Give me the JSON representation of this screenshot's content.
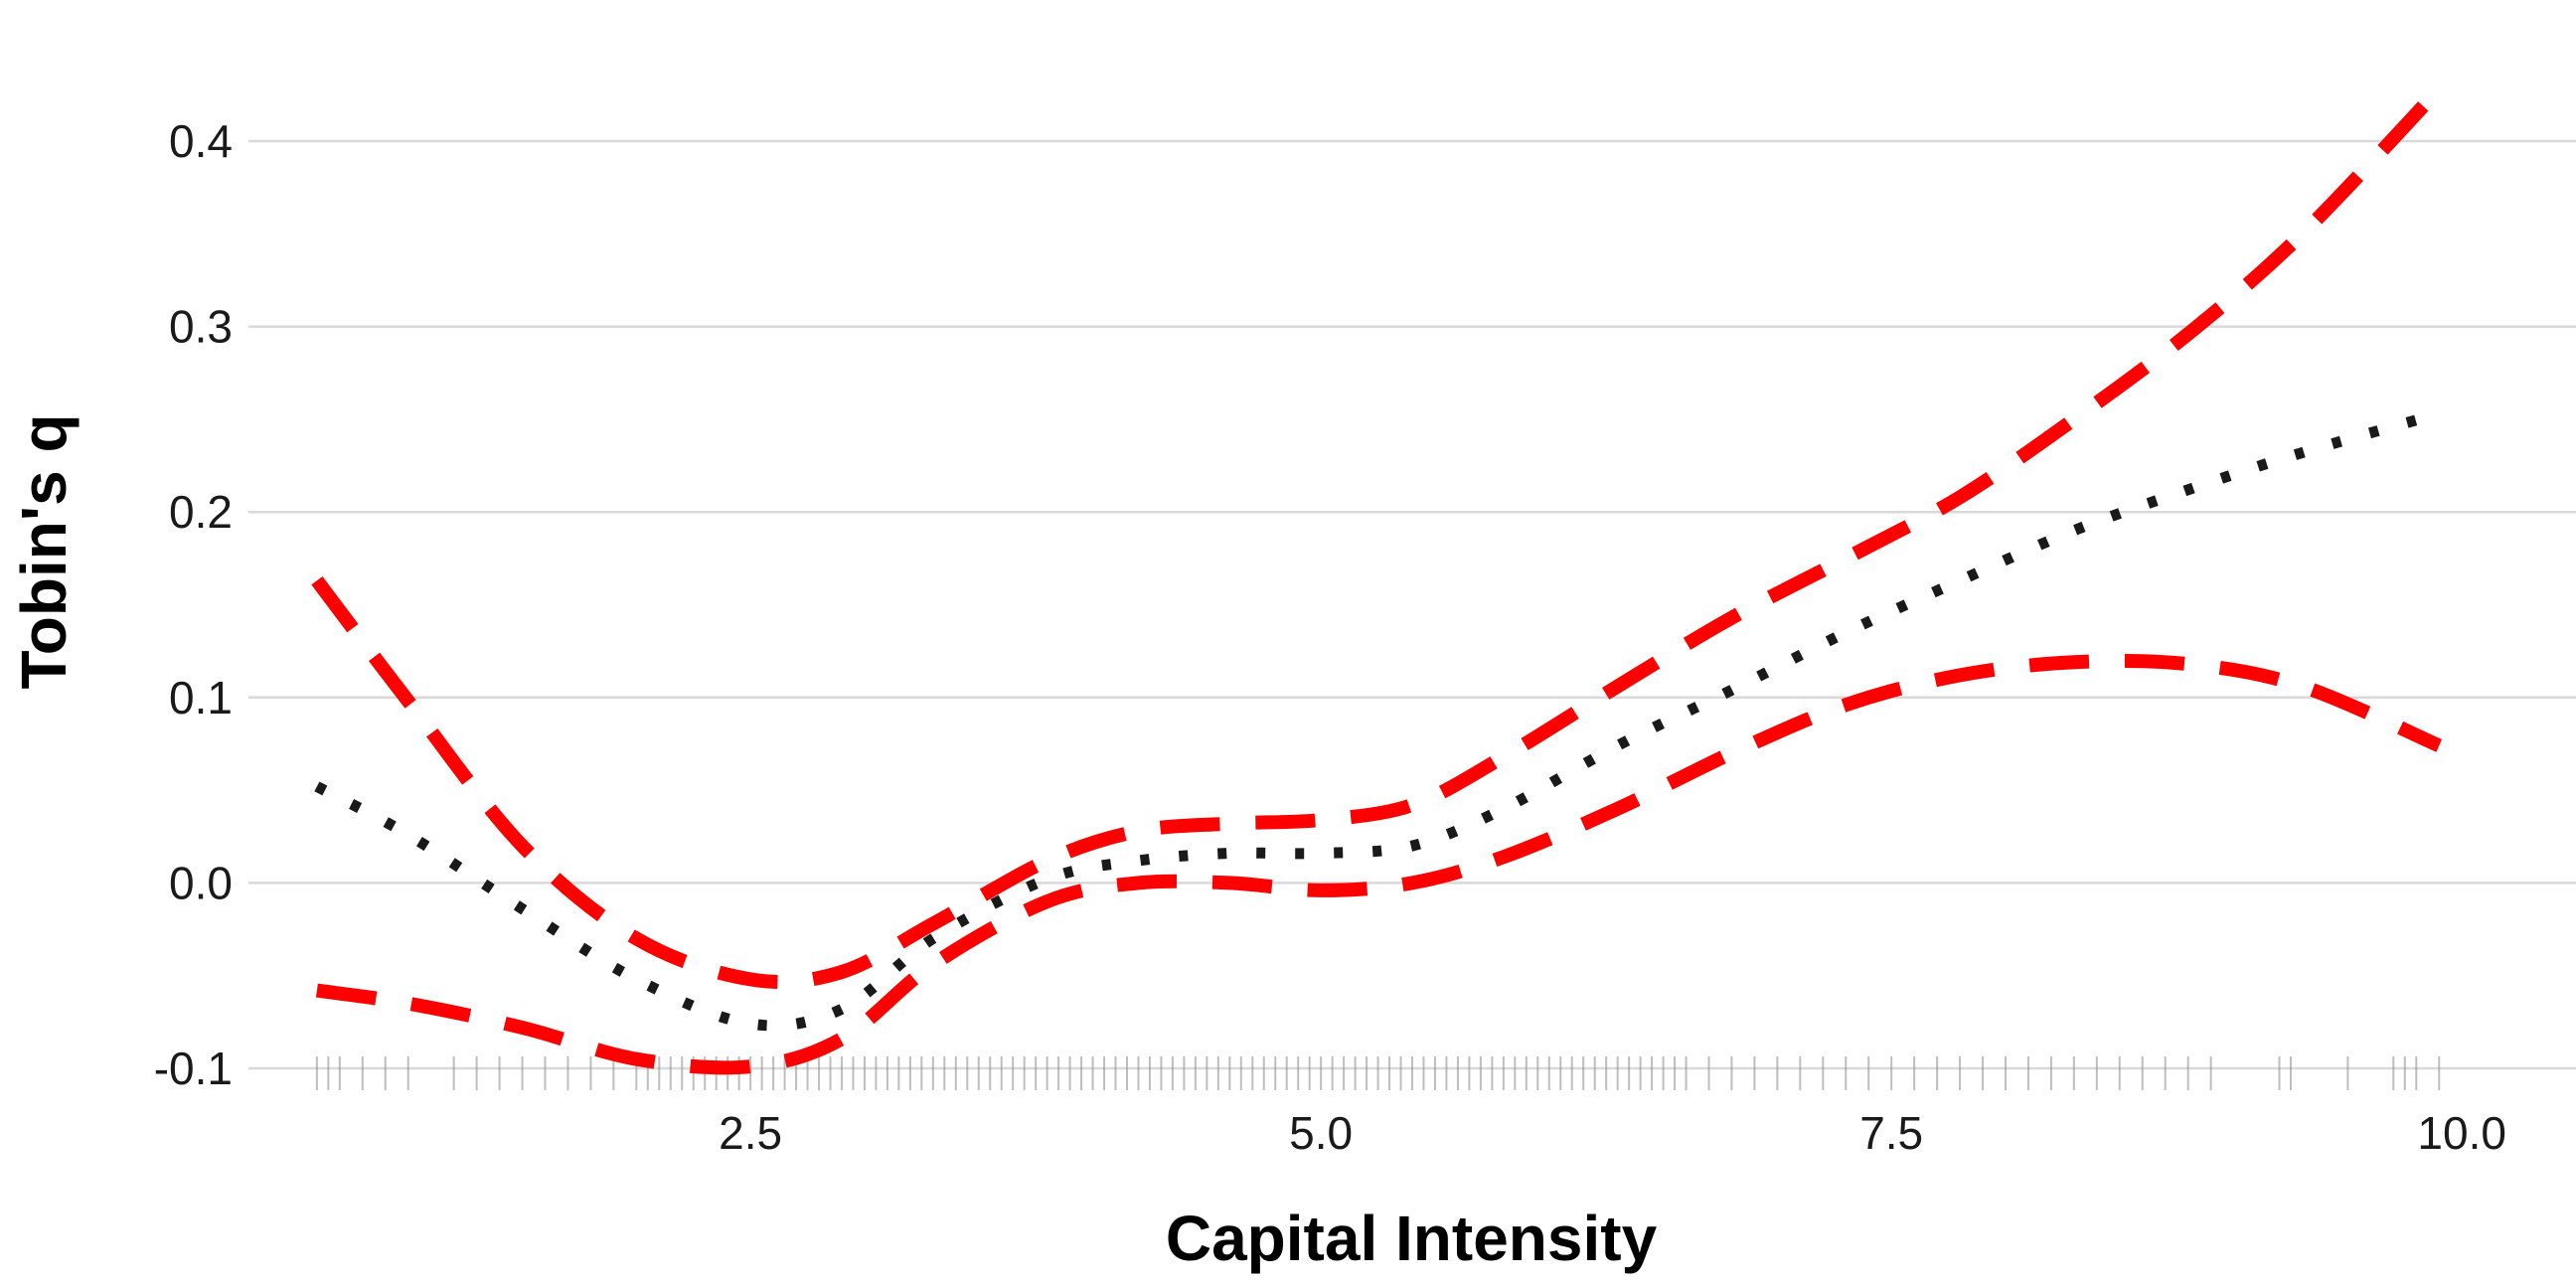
{
  "chart_data": {
    "type": "line",
    "title": "",
    "xlabel": "Capital Intensity",
    "ylabel": "Tobin's q",
    "xlim": [
      0.3,
      10.5
    ],
    "ylim": [
      -0.115,
      0.445
    ],
    "x_ticks": [
      2.5,
      5.0,
      7.5,
      10.0
    ],
    "x_tick_labels": [
      "2.5",
      "5.0",
      "7.5",
      "10.0"
    ],
    "y_ticks": [
      -0.1,
      0.0,
      0.1,
      0.2,
      0.3,
      0.4
    ],
    "y_tick_labels": [
      "-0.1",
      "0.0",
      "0.1",
      "0.2",
      "0.3",
      "0.4"
    ],
    "grid": "horizontal",
    "legend": "none",
    "colors": {
      "estimate": "#1a1a1a",
      "bands": "#ff0000",
      "rug": "#888888",
      "grid": "#d9d9d9"
    },
    "series": [
      {
        "style": "dotted",
        "x": [
          0.6,
          1.0,
          1.5,
          2.0,
          2.5,
          2.9,
          3.3,
          3.8,
          4.2,
          4.6,
          5.0,
          5.4,
          5.8,
          6.3,
          6.8,
          7.3,
          7.8,
          8.3,
          8.8,
          9.3,
          9.9
        ],
        "y": [
          0.052,
          0.026,
          -0.014,
          -0.052,
          -0.076,
          -0.068,
          -0.03,
          0.002,
          0.012,
          0.016,
          0.016,
          0.02,
          0.04,
          0.074,
          0.104,
          0.135,
          0.163,
          0.19,
          0.212,
          0.232,
          0.253
        ]
      },
      {
        "style": "dashed",
        "x": [
          0.6,
          1.0,
          1.5,
          2.0,
          2.5,
          2.9,
          3.3,
          3.8,
          4.2,
          4.6,
          5.0,
          5.4,
          5.8,
          6.3,
          6.8,
          7.3,
          7.8,
          8.3,
          8.8,
          9.3,
          9.9
        ],
        "y": [
          0.163,
          0.098,
          0.02,
          -0.03,
          -0.052,
          -0.048,
          -0.022,
          0.012,
          0.028,
          0.032,
          0.034,
          0.042,
          0.068,
          0.106,
          0.143,
          0.175,
          0.208,
          0.25,
          0.296,
          0.35,
          0.428
        ]
      },
      {
        "style": "dashed",
        "x": [
          0.6,
          1.0,
          1.5,
          2.0,
          2.5,
          2.9,
          3.3,
          3.8,
          4.2,
          4.6,
          5.0,
          5.4,
          5.8,
          6.3,
          6.8,
          7.3,
          7.8,
          8.3,
          8.8,
          9.3,
          9.9
        ],
        "y": [
          -0.058,
          -0.065,
          -0.078,
          -0.095,
          -0.099,
          -0.084,
          -0.044,
          -0.01,
          0.0,
          0.0,
          -0.004,
          0.0,
          0.014,
          0.04,
          0.07,
          0.096,
          0.112,
          0.119,
          0.118,
          0.106,
          0.074
        ]
      }
    ],
    "rug": [
      0.6,
      0.65,
      0.7,
      0.8,
      0.9,
      1.0,
      1.2,
      1.3,
      1.4,
      1.5,
      1.6,
      1.7,
      1.8,
      1.9,
      2.0,
      2.05,
      2.1,
      2.15,
      2.2,
      2.25,
      2.3,
      2.35,
      2.4,
      2.45,
      2.5,
      2.55,
      2.6,
      2.65,
      2.7,
      2.75,
      2.8,
      2.85,
      2.9,
      2.95,
      3.0,
      3.05,
      3.1,
      3.15,
      3.2,
      3.25,
      3.3,
      3.35,
      3.4,
      3.45,
      3.5,
      3.55,
      3.6,
      3.65,
      3.7,
      3.75,
      3.8,
      3.85,
      3.9,
      3.95,
      4.0,
      4.05,
      4.1,
      4.15,
      4.2,
      4.25,
      4.3,
      4.35,
      4.4,
      4.45,
      4.5,
      4.55,
      4.6,
      4.65,
      4.7,
      4.75,
      4.8,
      4.85,
      4.9,
      4.95,
      5.0,
      5.05,
      5.1,
      5.15,
      5.2,
      5.25,
      5.3,
      5.35,
      5.4,
      5.45,
      5.5,
      5.55,
      5.6,
      5.65,
      5.7,
      5.75,
      5.8,
      5.85,
      5.9,
      5.95,
      6.0,
      6.05,
      6.1,
      6.15,
      6.2,
      6.25,
      6.3,
      6.35,
      6.4,
      6.45,
      6.5,
      6.55,
      6.6,
      6.7,
      6.8,
      6.9,
      7.0,
      7.1,
      7.2,
      7.3,
      7.4,
      7.5,
      7.6,
      7.7,
      7.8,
      7.9,
      8.0,
      8.1,
      8.2,
      8.3,
      8.4,
      8.5,
      8.6,
      8.7,
      8.8,
      8.9,
      9.2,
      9.25,
      9.5,
      9.7,
      9.75,
      9.8,
      9.9
    ]
  }
}
